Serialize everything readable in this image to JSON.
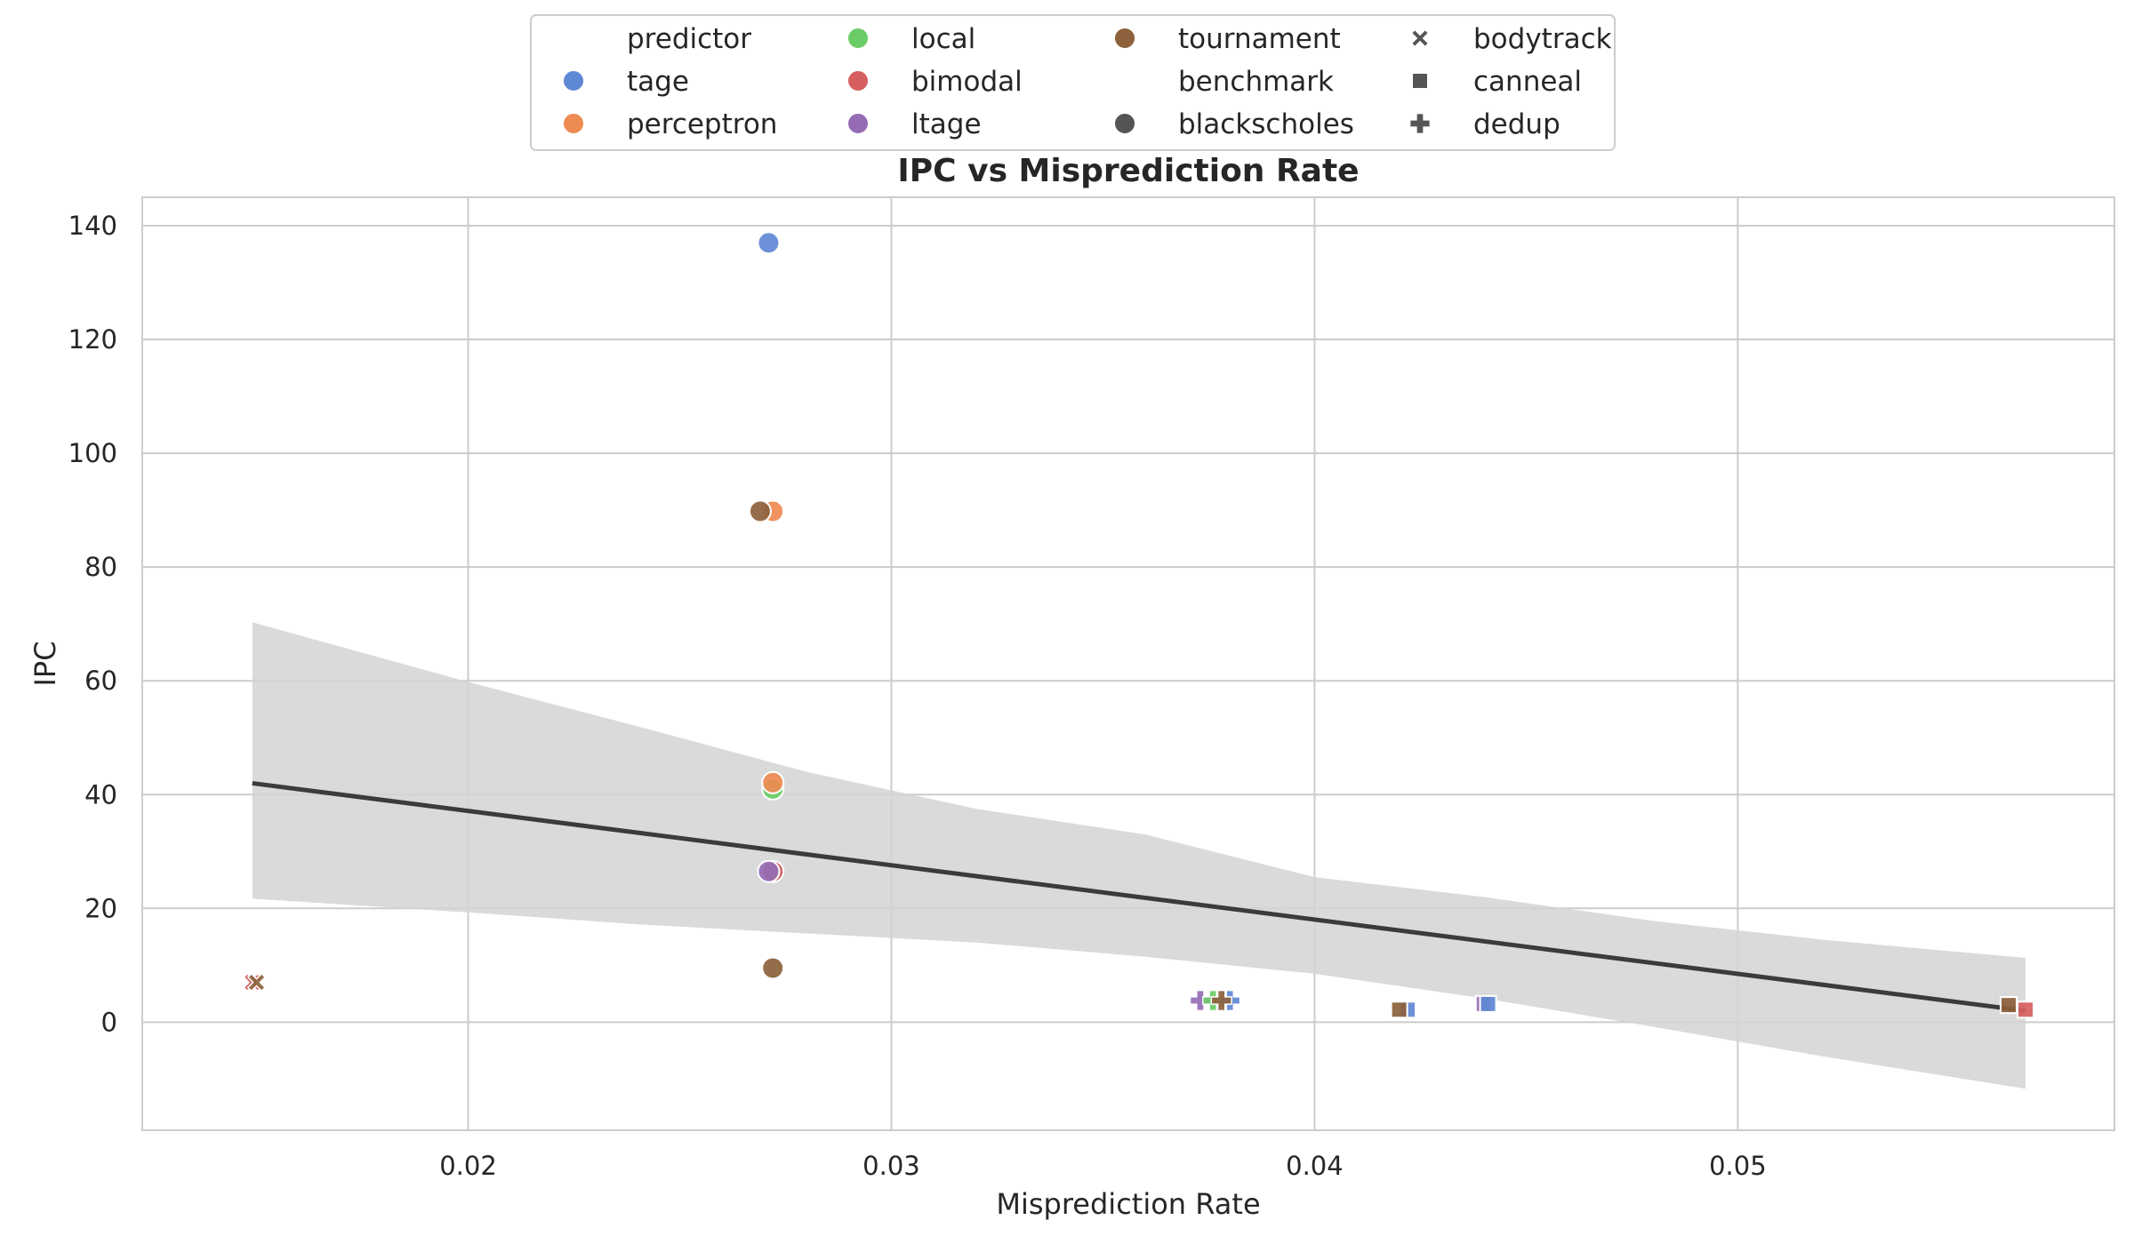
{
  "chart_data": {
    "type": "scatter",
    "title": "IPC vs Misprediction Rate",
    "xlabel": "Misprediction Rate",
    "ylabel": "IPC",
    "xlim": [
      0.0123,
      0.0589
    ],
    "ylim": [
      -19,
      145
    ],
    "xticks": [
      0.02,
      0.03,
      0.04,
      0.05
    ],
    "xtick_labels": [
      "0.02",
      "0.03",
      "0.04",
      "0.05"
    ],
    "yticks": [
      0,
      20,
      40,
      60,
      80,
      100,
      120,
      140
    ],
    "ytick_labels": [
      "0",
      "20",
      "40",
      "60",
      "80",
      "100",
      "120",
      "140"
    ],
    "grid": true,
    "legend": {
      "placement": "top-center",
      "columns": [
        [
          {
            "kind": "header",
            "label": "predictor"
          },
          {
            "kind": "hue",
            "label": "tage",
            "color": "#5f88d5"
          },
          {
            "kind": "hue",
            "label": "perceptron",
            "color": "#ee8b53"
          }
        ],
        [
          {
            "kind": "hue",
            "label": "local",
            "color": "#6acc65"
          },
          {
            "kind": "hue",
            "label": "bimodal",
            "color": "#d65f5f"
          },
          {
            "kind": "hue",
            "label": "ltage",
            "color": "#956cb4"
          }
        ],
        [
          {
            "kind": "hue",
            "label": "tournament",
            "color": "#8c613c"
          },
          {
            "kind": "header",
            "label": "benchmark"
          },
          {
            "kind": "style",
            "label": "blackscholes",
            "marker": "circle"
          }
        ],
        [
          {
            "kind": "style",
            "label": "bodytrack",
            "marker": "x"
          },
          {
            "kind": "style",
            "label": "canneal",
            "marker": "square"
          },
          {
            "kind": "style",
            "label": "dedup",
            "marker": "plus"
          }
        ]
      ]
    },
    "colors": {
      "tage": "#5f88d5",
      "perceptron": "#ee8b53",
      "local": "#6acc65",
      "bimodal": "#d65f5f",
      "ltage": "#956cb4",
      "tournament": "#8c613c",
      "regression_line": "#3b3b3b",
      "confidence_band": "#d3d3d3"
    },
    "points": [
      {
        "predictor": "tage",
        "benchmark": "blackscholes",
        "x": 0.0271,
        "y": 137.0
      },
      {
        "predictor": "perceptron",
        "benchmark": "blackscholes",
        "x": 0.0272,
        "y": 89.8
      },
      {
        "predictor": "tournament",
        "benchmark": "blackscholes",
        "x": 0.0269,
        "y": 89.8
      },
      {
        "predictor": "local",
        "benchmark": "blackscholes",
        "x": 0.0272,
        "y": 41.0
      },
      {
        "predictor": "perceptron",
        "benchmark": "blackscholes",
        "x": 0.0272,
        "y": 42.1
      },
      {
        "predictor": "bimodal",
        "benchmark": "blackscholes",
        "x": 0.0272,
        "y": 26.5
      },
      {
        "predictor": "ltage",
        "benchmark": "blackscholes",
        "x": 0.0271,
        "y": 26.5
      },
      {
        "predictor": "tournament",
        "benchmark": "blackscholes",
        "x": 0.0272,
        "y": 9.5
      },
      {
        "predictor": "bimodal",
        "benchmark": "bodytrack",
        "x": 0.0149,
        "y": 7.0
      },
      {
        "predictor": "tournament",
        "benchmark": "bodytrack",
        "x": 0.015,
        "y": 7.0
      },
      {
        "predictor": "ltage",
        "benchmark": "dedup",
        "x": 0.0373,
        "y": 3.8
      },
      {
        "predictor": "local",
        "benchmark": "dedup",
        "x": 0.0376,
        "y": 3.8
      },
      {
        "predictor": "tage",
        "benchmark": "dedup",
        "x": 0.038,
        "y": 3.8
      },
      {
        "predictor": "tournament",
        "benchmark": "dedup",
        "x": 0.0378,
        "y": 3.8
      },
      {
        "predictor": "tage",
        "benchmark": "canneal",
        "x": 0.0422,
        "y": 2.2
      },
      {
        "predictor": "tournament",
        "benchmark": "canneal",
        "x": 0.042,
        "y": 2.2
      },
      {
        "predictor": "ltage",
        "benchmark": "canneal",
        "x": 0.044,
        "y": 3.2
      },
      {
        "predictor": "tage",
        "benchmark": "canneal",
        "x": 0.0441,
        "y": 3.2
      },
      {
        "predictor": "bimodal",
        "benchmark": "canneal",
        "x": 0.0568,
        "y": 2.2
      },
      {
        "predictor": "tournament",
        "benchmark": "canneal",
        "x": 0.0564,
        "y": 3.0
      }
    ],
    "regression": {
      "line": [
        [
          0.0149,
          42.0
        ],
        [
          0.0568,
          2.0
        ]
      ],
      "band_x": [
        0.0149,
        0.02,
        0.024,
        0.028,
        0.032,
        0.036,
        0.04,
        0.044,
        0.048,
        0.052,
        0.0568
      ],
      "band_upper": [
        70.3,
        59.8,
        52.0,
        44.0,
        37.5,
        33.0,
        25.5,
        22.0,
        17.8,
        14.5,
        11.3
      ],
      "band_lower": [
        21.7,
        19.3,
        17.2,
        15.6,
        14.0,
        11.5,
        8.5,
        4.2,
        -0.8,
        -6.0,
        -11.7
      ]
    }
  }
}
